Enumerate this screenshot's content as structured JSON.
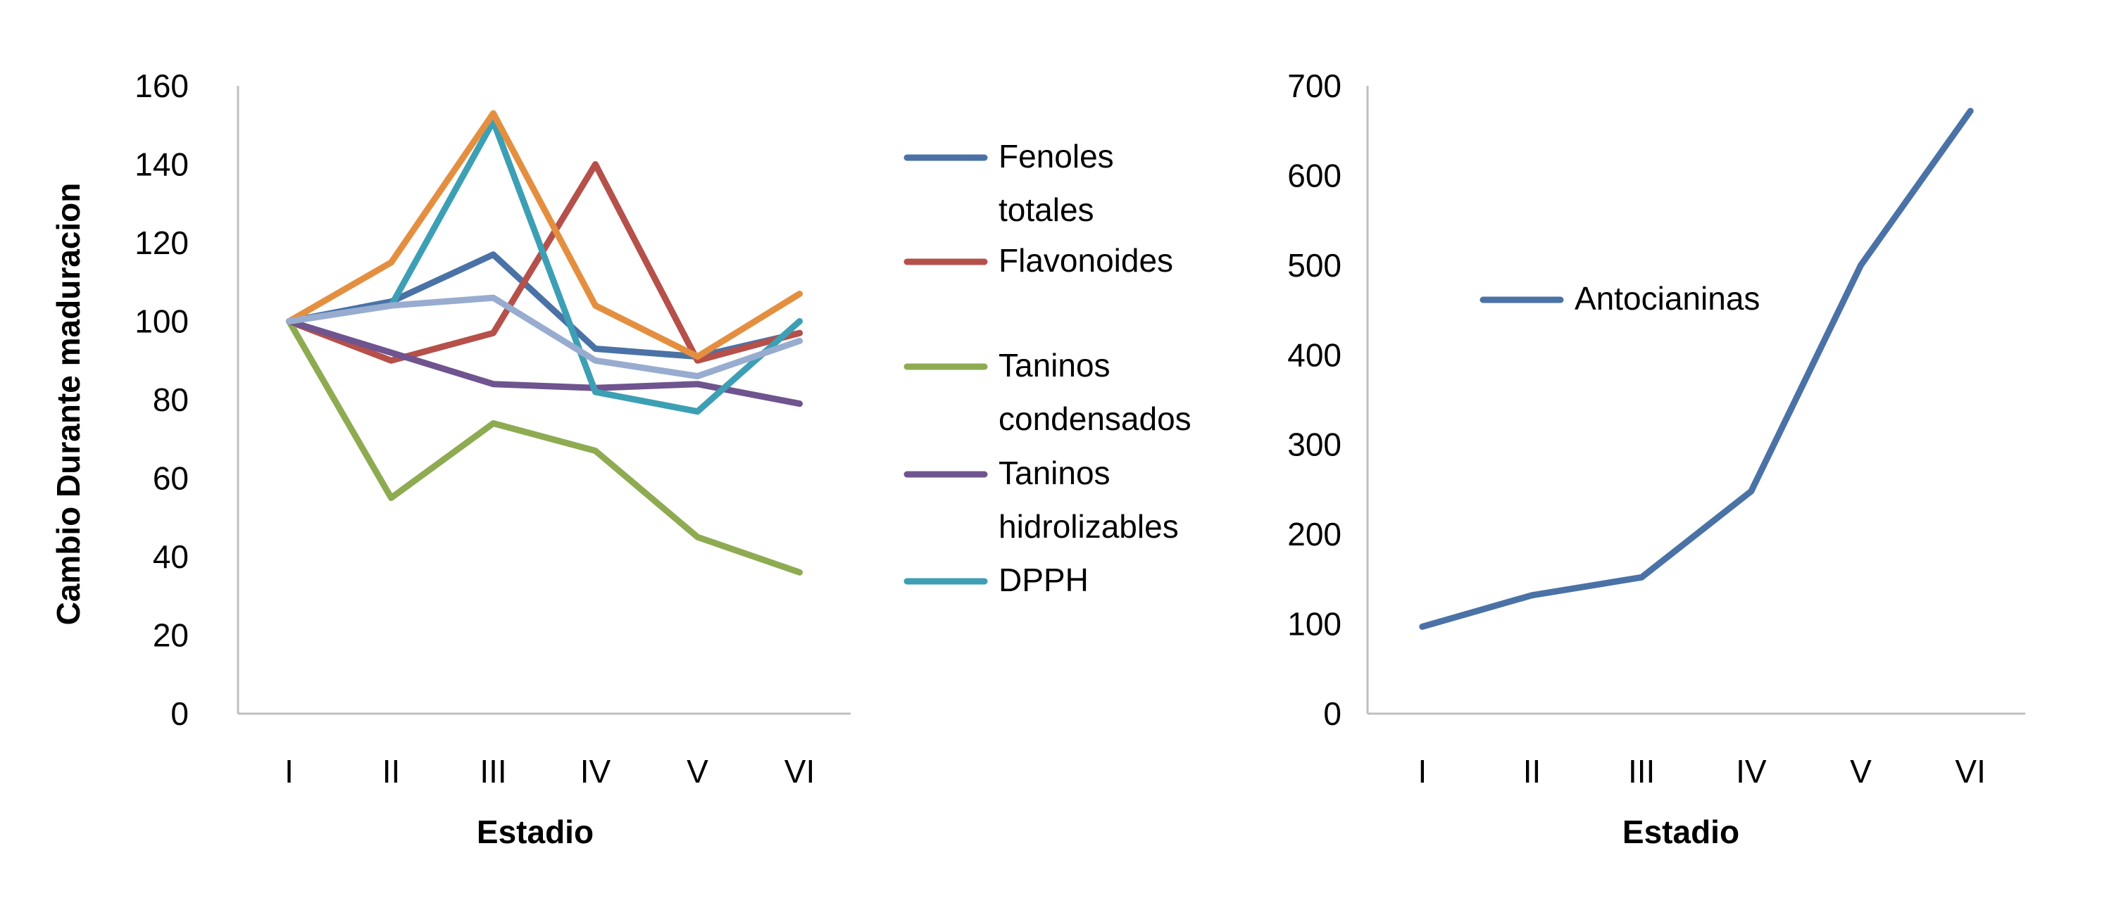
{
  "colors": {
    "axis": "#bfbfbf",
    "text": "#000000"
  },
  "chart_data": [
    {
      "type": "line",
      "title": "",
      "xlabel": "Estadio",
      "ylabel": "Cambio Durante maduracion",
      "ylim": [
        0,
        160
      ],
      "yticks": [
        "0",
        "20",
        "40",
        "60",
        "80",
        "100",
        "120",
        "140",
        "160"
      ],
      "categories": [
        "I",
        "II",
        "III",
        "IV",
        "V",
        "VI"
      ],
      "grid": false,
      "legend": "right",
      "series": [
        {
          "name": "Fenoles totales",
          "color": "#4a72a6",
          "values": [
            100,
            105,
            117,
            93,
            91,
            97
          ],
          "legend_lines": [
            "Fenoles",
            "totales"
          ]
        },
        {
          "name": "Flavonoides",
          "color": "#b5504a",
          "values": [
            100,
            90,
            97,
            140,
            90,
            97
          ],
          "legend_lines": [
            "Flavonoides"
          ]
        },
        {
          "name": "Taninos condensados",
          "color": "#8eab52",
          "values": [
            100,
            55,
            74,
            67,
            45,
            36
          ],
          "legend_lines": [
            "Taninos",
            "condensados"
          ]
        },
        {
          "name": "Taninos hidrolizables",
          "color": "#6f548f",
          "values": [
            100,
            92,
            84,
            83,
            84,
            79
          ],
          "legend_lines": [
            "Taninos",
            "hidrolizables"
          ]
        },
        {
          "name": "DPPH",
          "color": "#3d9fb4",
          "values": [
            100,
            104,
            151,
            82,
            77,
            100
          ],
          "legend_lines": [
            "DPPH"
          ]
        },
        {
          "name": "",
          "color": "#e48f40",
          "values": [
            100,
            115,
            153,
            104,
            91,
            107
          ],
          "legend_lines": []
        },
        {
          "name": "",
          "color": "#98acd0",
          "values": [
            100,
            104,
            106,
            90,
            86,
            95
          ],
          "legend_lines": []
        }
      ]
    },
    {
      "type": "line",
      "title": "",
      "xlabel": "Estadio",
      "ylabel": "",
      "ylim": [
        0,
        700
      ],
      "yticks": [
        "0",
        "100",
        "200",
        "300",
        "400",
        "500",
        "600",
        "700"
      ],
      "categories": [
        "I",
        "II",
        "III",
        "IV",
        "V",
        "VI"
      ],
      "grid": false,
      "legend": "top-left",
      "series": [
        {
          "name": "Antocianinas",
          "color": "#4a72a6",
          "values": [
            97,
            132,
            152,
            248,
            500,
            672
          ],
          "legend_lines": [
            "Antocianinas"
          ]
        }
      ]
    }
  ]
}
